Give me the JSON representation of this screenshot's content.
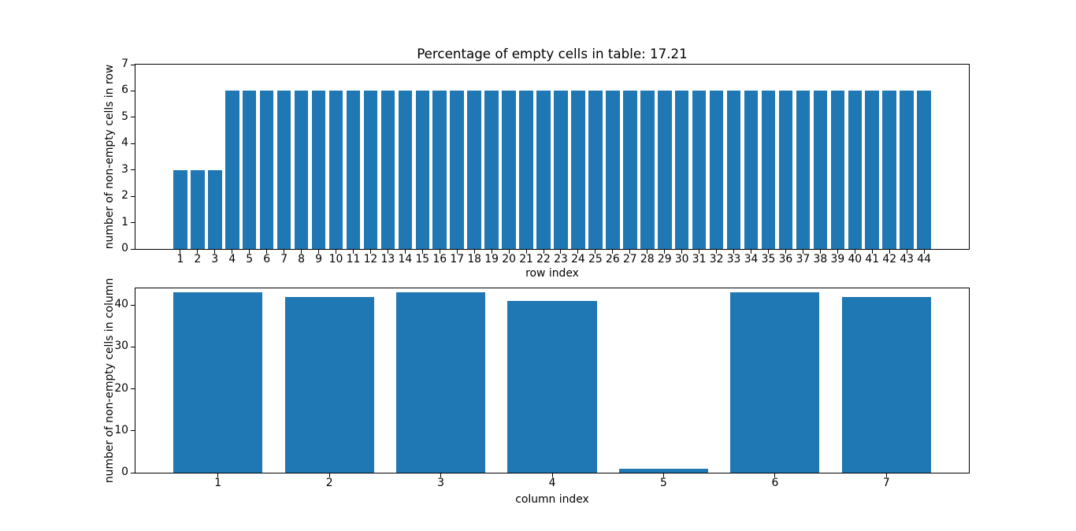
{
  "figure": {
    "background": "#ffffff",
    "text_color": "#000000",
    "spine_color": "#000000"
  },
  "chart_data": [
    {
      "type": "bar",
      "title": "Percentage of empty cells in table: 17.21",
      "xlabel": "row index",
      "ylabel": "number of non-empty cells in row",
      "categories": [
        1,
        2,
        3,
        4,
        5,
        6,
        7,
        8,
        9,
        10,
        11,
        12,
        13,
        14,
        15,
        16,
        17,
        18,
        19,
        20,
        21,
        22,
        23,
        24,
        25,
        26,
        27,
        28,
        29,
        30,
        31,
        32,
        33,
        34,
        35,
        36,
        37,
        38,
        39,
        40,
        41,
        42,
        43,
        44
      ],
      "values": [
        3,
        3,
        3,
        6,
        6,
        6,
        6,
        6,
        6,
        6,
        6,
        6,
        6,
        6,
        6,
        6,
        6,
        6,
        6,
        6,
        6,
        6,
        6,
        6,
        6,
        6,
        6,
        6,
        6,
        6,
        6,
        6,
        6,
        6,
        6,
        6,
        6,
        6,
        6,
        6,
        6,
        6,
        6,
        6
      ],
      "ylim": [
        0,
        7
      ],
      "yticks": [
        0,
        1,
        2,
        3,
        4,
        5,
        6,
        7
      ],
      "xlim": [
        -1.59,
        46.59
      ],
      "bar_width": 0.8,
      "bar_color": "#1f77b4",
      "grid": false,
      "legend": false
    },
    {
      "type": "bar",
      "xlabel": "column index",
      "ylabel": "number of non-empty cells in column",
      "categories": [
        1,
        2,
        3,
        4,
        5,
        6,
        7
      ],
      "values": [
        43,
        42,
        43,
        41,
        1,
        43,
        42
      ],
      "ylim": [
        0,
        44
      ],
      "yticks": [
        0,
        10,
        20,
        30,
        40
      ],
      "xlim": [
        0.26,
        7.74
      ],
      "bar_width": 0.8,
      "bar_color": "#1f77b4",
      "grid": false,
      "legend": false
    }
  ]
}
